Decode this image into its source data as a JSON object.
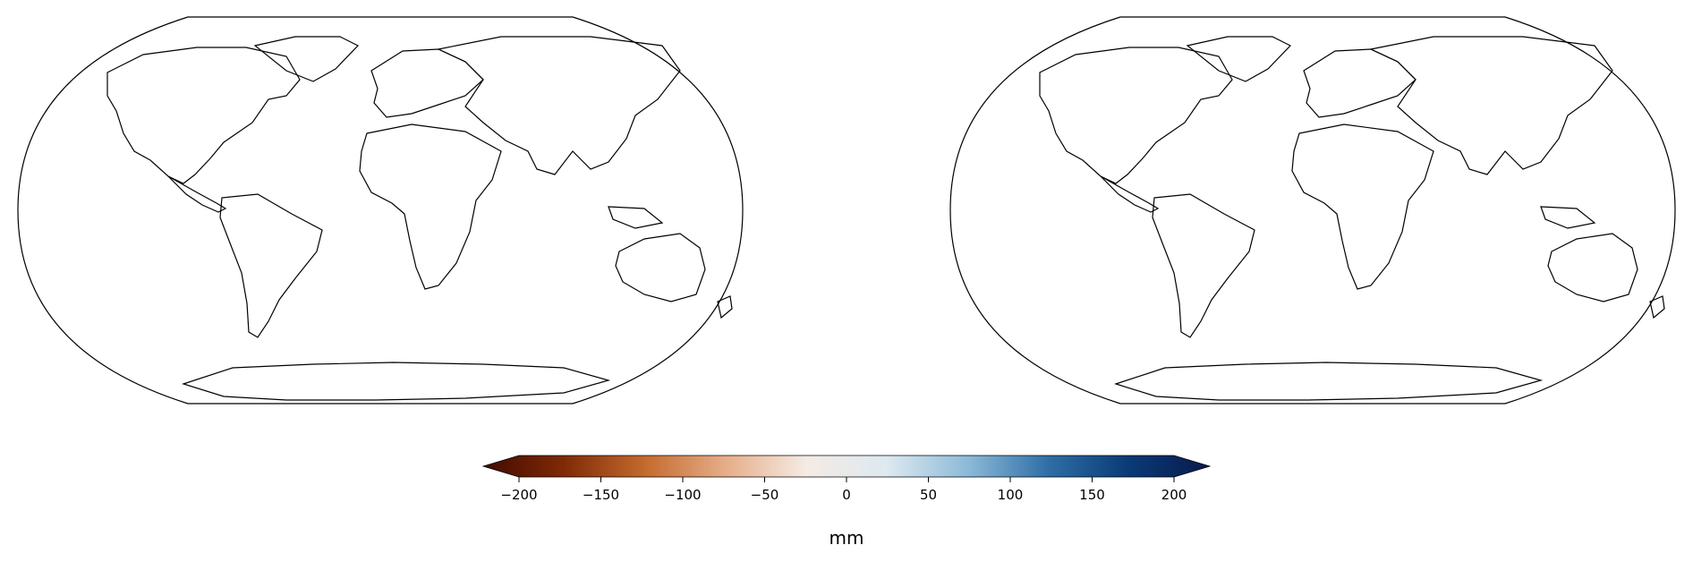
{
  "figure": {
    "panels": [
      {
        "id": "left",
        "kind": "smooth anomaly field"
      },
      {
        "id": "right",
        "kind": "high-resolution anomaly field"
      }
    ],
    "colorbar": {
      "vmin": -200,
      "vmax": 200,
      "ticks": [
        -200,
        -150,
        -100,
        -50,
        0,
        50,
        100,
        150,
        200
      ],
      "tick_labels": [
        "−200",
        "−150",
        "−100",
        "−50",
        "0",
        "50",
        "100",
        "150",
        "200"
      ],
      "label": "mm",
      "extend": "both",
      "colormap": [
        "#420a00",
        "#7f2a06",
        "#c46a2e",
        "#e6ad88",
        "#f5ebe4",
        "#dde9f0",
        "#8cbad8",
        "#2f6ea6",
        "#0a3a76",
        "#081a4d"
      ]
    }
  }
}
